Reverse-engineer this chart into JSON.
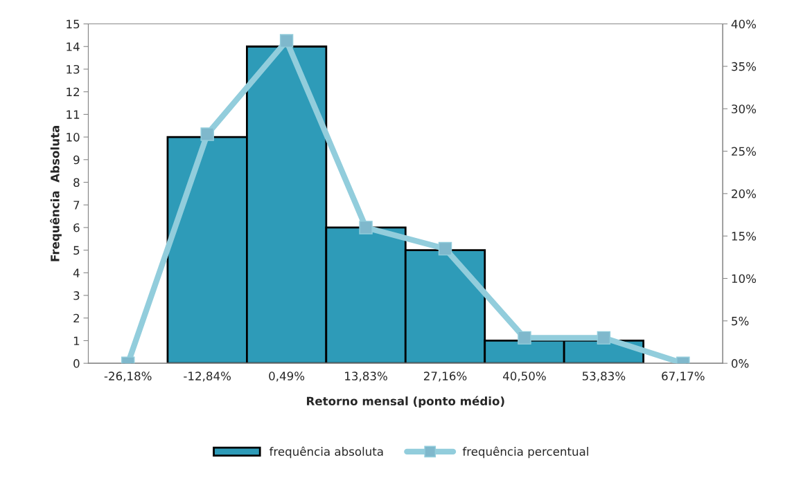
{
  "chart_data": {
    "type": "bar",
    "categories": [
      "-26,18%",
      "-12,84%",
      "0,49%",
      "13,83%",
      "27,16%",
      "40,50%",
      "53,83%",
      "67,17%"
    ],
    "series": [
      {
        "name": "frequência absoluta",
        "color": "#2e9bb8",
        "values": [
          0,
          10,
          14,
          6,
          5,
          1,
          1,
          0
        ]
      },
      {
        "type": "line",
        "name": "frequência percentual",
        "color": "#92cddc",
        "axis": "y2",
        "marker": "square",
        "values": [
          0,
          27,
          38,
          16,
          13.5,
          3,
          3,
          0
        ]
      }
    ],
    "xlabel": "Retorno mensal (ponto médio)",
    "ylabel": "Frequência  Absoluta",
    "ylim": [
      0,
      15
    ],
    "yticks": [
      0,
      1,
      2,
      3,
      4,
      5,
      6,
      7,
      8,
      9,
      10,
      11,
      12,
      13,
      14,
      15
    ],
    "y2lim": [
      0,
      40
    ],
    "y2ticks": [
      {
        "value": 0,
        "label": "0%"
      },
      {
        "value": 5,
        "label": "5%"
      },
      {
        "value": 10,
        "label": "10%"
      },
      {
        "value": 15,
        "label": "15%"
      },
      {
        "value": 20,
        "label": "20%"
      },
      {
        "value": 25,
        "label": "25%"
      },
      {
        "value": 30,
        "label": "30%"
      },
      {
        "value": 35,
        "label": "35%"
      },
      {
        "value": 40,
        "label": "40%"
      }
    ],
    "grid": false,
    "legend": "bottom"
  }
}
